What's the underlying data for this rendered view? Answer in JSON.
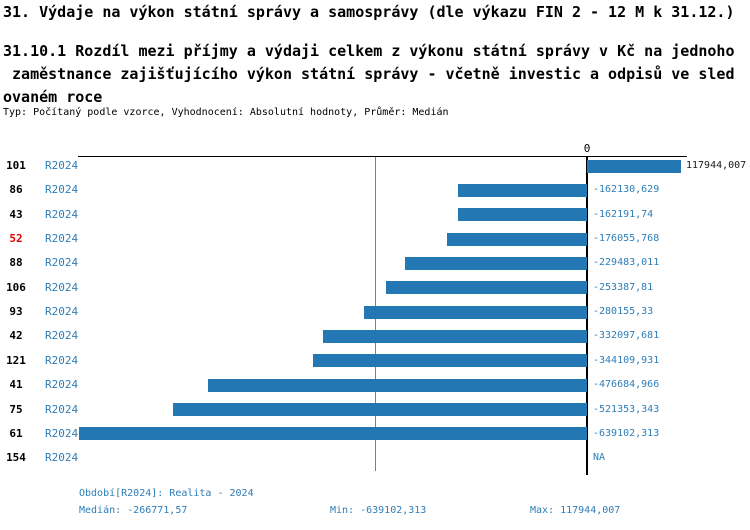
{
  "title": "31. Výdaje na výkon státní správy a samosprávy (dle výkazu FIN 2 - 12 M k 31.12.)",
  "subtitle_lines": [
    "31.10.1 Rozdíl mezi příjmy a výdaji celkem z výkonu státní správy v Kč na jednoho",
    " zaměstnance zajišťujícího výkon státní správy - včetně investic a odpisů ve sled",
    "ovaném roce"
  ],
  "meta_line": "Typ: Počítaný podle vzorce, Vyhodnocení: Absolutní hodnoty, Průměr: Medián",
  "colors": {
    "bar_blue": "#2378b4",
    "text_blue": "#2e7eb8",
    "median_blue": "#4090c0",
    "red": "#e00000",
    "axis_black": "#000000"
  },
  "chart_data": {
    "type": "bar",
    "orientation": "horizontal",
    "zero_label": "0",
    "series_label": "R2024",
    "xlim": [
      -639102.313,
      117944.007
    ],
    "median": -266771.57,
    "min": -639102.313,
    "max": 117944.007,
    "grid": false,
    "rows": [
      {
        "id": "101",
        "value": 117944.007,
        "label": "117944,007",
        "highlight": false
      },
      {
        "id": "86",
        "value": -162130.629,
        "label": "-162130,629",
        "highlight": false
      },
      {
        "id": "43",
        "value": -162191.74,
        "label": "-162191,74",
        "highlight": false
      },
      {
        "id": "52",
        "value": -176055.768,
        "label": "-176055,768",
        "highlight": true
      },
      {
        "id": "88",
        "value": -229483.011,
        "label": "-229483,011",
        "highlight": false
      },
      {
        "id": "106",
        "value": -253387.81,
        "label": "-253387,81",
        "highlight": false
      },
      {
        "id": "93",
        "value": -280155.33,
        "label": "-280155,33",
        "highlight": false
      },
      {
        "id": "42",
        "value": -332097.681,
        "label": "-332097,681",
        "highlight": false
      },
      {
        "id": "121",
        "value": -344109.931,
        "label": "-344109,931",
        "highlight": false
      },
      {
        "id": "41",
        "value": -476684.966,
        "label": "-476684,966",
        "highlight": false
      },
      {
        "id": "75",
        "value": -521353.343,
        "label": "-521353,343",
        "highlight": false
      },
      {
        "id": "61",
        "value": -639102.313,
        "label": "-639102,313",
        "highlight": false
      },
      {
        "id": "154",
        "value": null,
        "label": "NA",
        "highlight": false
      }
    ]
  },
  "footer": {
    "period": "Období[R2024]: Realita - 2024",
    "median": "Medián: -266771,57",
    "min": "Min: -639102,313",
    "max": "Max: 117944,007"
  }
}
